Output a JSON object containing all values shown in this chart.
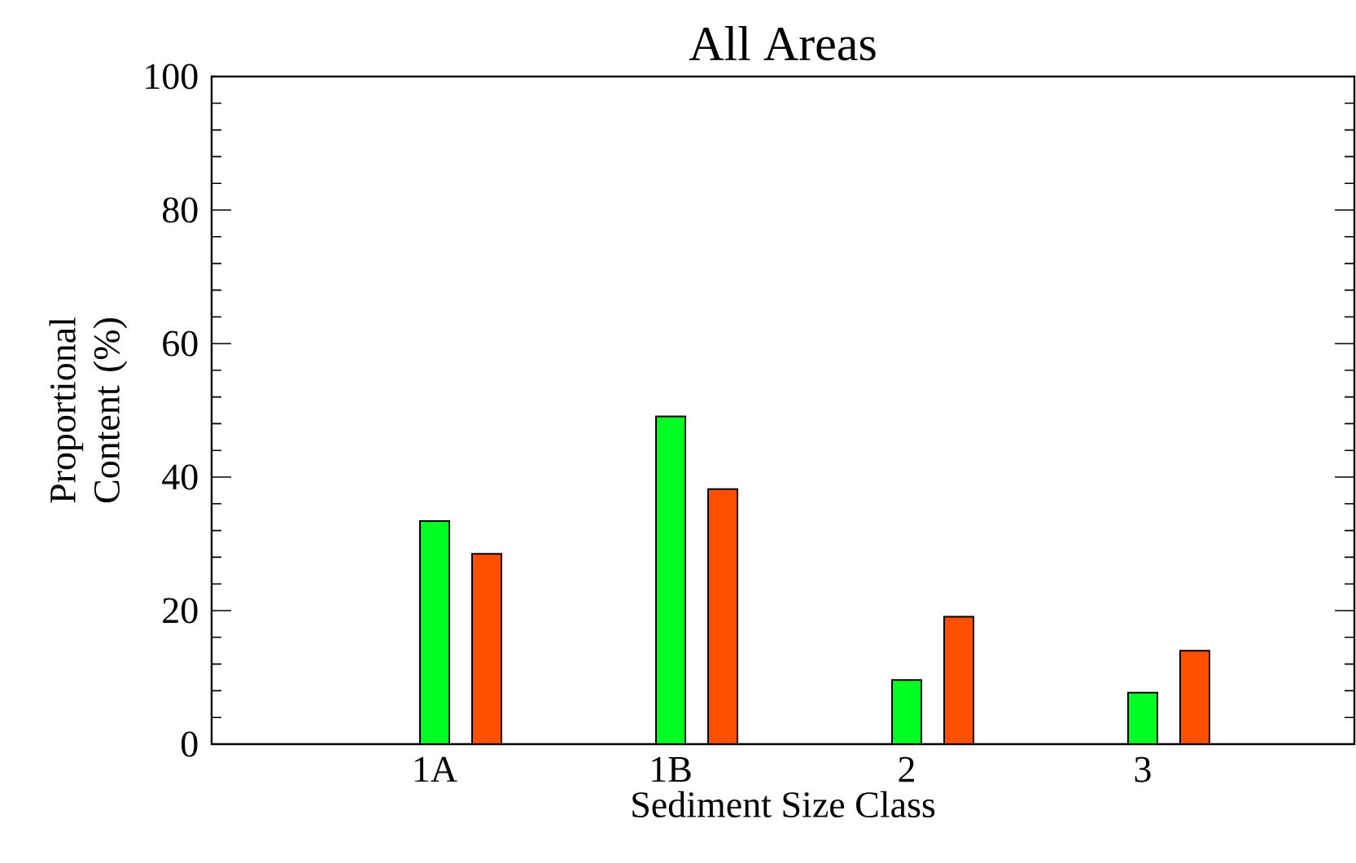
{
  "chart_data": {
    "type": "bar",
    "title": "All Areas",
    "xlabel": "Sediment Size Class",
    "ylabel": "Proportional Content (%)",
    "categories": [
      "1A",
      "1B",
      "2",
      "3"
    ],
    "series": [
      {
        "color": "#00ff22",
        "values": [
          33.4,
          49.1,
          9.6,
          7.7
        ]
      },
      {
        "color": "#ff5000",
        "values": [
          28.5,
          38.2,
          19.1,
          14.0
        ]
      }
    ],
    "ylim": [
      0,
      100
    ],
    "yticks": [
      0,
      20,
      40,
      60,
      80,
      100
    ]
  }
}
